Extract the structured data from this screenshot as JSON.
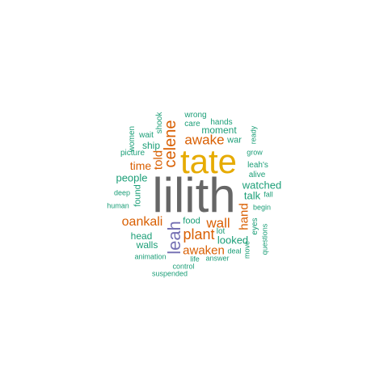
{
  "colors": {
    "dark_gray": "#666666",
    "gold": "#e6ab02",
    "orange": "#d95f02",
    "purple": "#7570b3",
    "teal": "#1b9e77"
  },
  "words": [
    {
      "text": "lilith"
    },
    {
      "text": "tate"
    },
    {
      "text": "celene"
    },
    {
      "text": "leah"
    },
    {
      "text": "awake"
    },
    {
      "text": "oankali"
    },
    {
      "text": "plant"
    },
    {
      "text": "wall"
    },
    {
      "text": "awaken"
    },
    {
      "text": "hand"
    },
    {
      "text": "told"
    },
    {
      "text": "time"
    },
    {
      "text": "people"
    },
    {
      "text": "watched"
    },
    {
      "text": "talk"
    },
    {
      "text": "looked"
    },
    {
      "text": "ship"
    },
    {
      "text": "head"
    },
    {
      "text": "walls"
    },
    {
      "text": "moment"
    },
    {
      "text": "food"
    },
    {
      "text": "found"
    },
    {
      "text": "wrong"
    },
    {
      "text": "hands"
    },
    {
      "text": "care"
    },
    {
      "text": "war"
    },
    {
      "text": "shook"
    },
    {
      "text": "women"
    },
    {
      "text": "wait"
    },
    {
      "text": "picture"
    },
    {
      "text": "ready"
    },
    {
      "text": "grow"
    },
    {
      "text": "leah's"
    },
    {
      "text": "alive"
    },
    {
      "text": "deep"
    },
    {
      "text": "fall"
    },
    {
      "text": "human"
    },
    {
      "text": "begin"
    },
    {
      "text": "eyes"
    },
    {
      "text": "lot"
    },
    {
      "text": "questions"
    },
    {
      "text": "deal"
    },
    {
      "text": "move"
    },
    {
      "text": "animation"
    },
    {
      "text": "life"
    },
    {
      "text": "answer"
    },
    {
      "text": "control"
    },
    {
      "text": "suspended"
    }
  ]
}
